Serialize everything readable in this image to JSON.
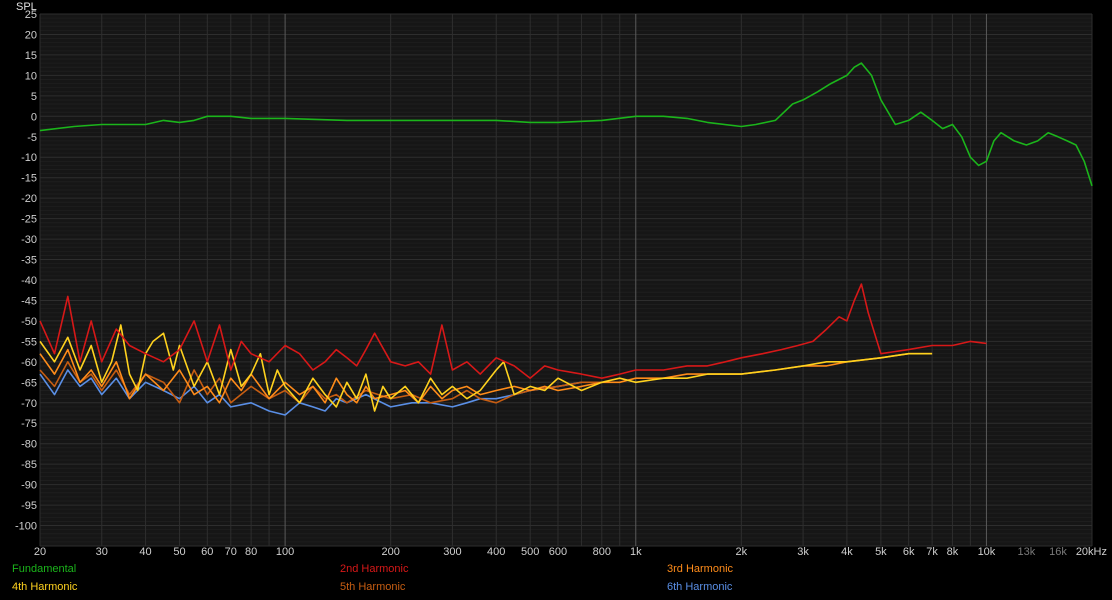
{
  "chart_data": {
    "type": "line",
    "ylabel": "SPL",
    "x_scale": "log",
    "xlim": [
      20,
      20000
    ],
    "ylim": [
      -105,
      25
    ],
    "grid": true,
    "legend_position": "bottom",
    "background": "#000000",
    "y_ticks": [
      "25",
      "20",
      "15",
      "10",
      "5",
      "0",
      "-5",
      "-10",
      "-15",
      "-20",
      "-25",
      "-30",
      "-35",
      "-40",
      "-45",
      "-50",
      "-55",
      "-60",
      "-65",
      "-70",
      "-75",
      "-80",
      "-85",
      "-90",
      "-95",
      "-100"
    ],
    "x_ticks": [
      {
        "value": 20,
        "label": "20"
      },
      {
        "value": 30,
        "label": "30"
      },
      {
        "value": 40,
        "label": "40"
      },
      {
        "value": 50,
        "label": "50"
      },
      {
        "value": 60,
        "label": "60"
      },
      {
        "value": 70,
        "label": "70"
      },
      {
        "value": 80,
        "label": "80"
      },
      {
        "value": 100,
        "label": "100"
      },
      {
        "value": 200,
        "label": "200"
      },
      {
        "value": 300,
        "label": "300"
      },
      {
        "value": 400,
        "label": "400"
      },
      {
        "value": 500,
        "label": "500"
      },
      {
        "value": 600,
        "label": "600"
      },
      {
        "value": 800,
        "label": "800"
      },
      {
        "value": 1000,
        "label": "1k"
      },
      {
        "value": 2000,
        "label": "2k"
      },
      {
        "value": 3000,
        "label": "3k"
      },
      {
        "value": 4000,
        "label": "4k"
      },
      {
        "value": 5000,
        "label": "5k"
      },
      {
        "value": 6000,
        "label": "6k"
      },
      {
        "value": 7000,
        "label": "7k"
      },
      {
        "value": 8000,
        "label": "8k"
      },
      {
        "value": 10000,
        "label": "10k"
      },
      {
        "value": 13000,
        "label": "13k",
        "dim": true
      },
      {
        "value": 16000,
        "label": "16k",
        "dim": true
      },
      {
        "value": 20000,
        "label": "20kHz"
      }
    ],
    "series": [
      {
        "name": "Fundamental",
        "color": "#1bb51b",
        "x": [
          20,
          25,
          30,
          35,
          40,
          45,
          50,
          55,
          60,
          70,
          80,
          100,
          150,
          200,
          300,
          400,
          500,
          600,
          800,
          1000,
          1200,
          1400,
          1600,
          2000,
          2200,
          2500,
          2800,
          3000,
          3300,
          3600,
          4000,
          4200,
          4400,
          4700,
          5000,
          5500,
          6000,
          6500,
          7000,
          7500,
          8000,
          8500,
          9000,
          9500,
          10000,
          10500,
          11000,
          12000,
          13000,
          14000,
          15000,
          16000,
          17000,
          18000,
          19000,
          20000
        ],
        "y": [
          -3.5,
          -2.5,
          -2,
          -2,
          -2,
          -1,
          -1.5,
          -1,
          0,
          0,
          -0.5,
          -0.5,
          -1,
          -1,
          -1,
          -1,
          -1.5,
          -1.5,
          -1,
          0,
          0,
          -0.5,
          -1.5,
          -2.5,
          -2,
          -1,
          3,
          4,
          6,
          8,
          10,
          12,
          13,
          10,
          4,
          -2,
          -1,
          1,
          -1,
          -3,
          -2,
          -5,
          -10,
          -12,
          -11,
          -6,
          -4,
          -6,
          -7,
          -6,
          -4,
          -5,
          -6,
          -7,
          -11,
          -17
        ]
      },
      {
        "name": "2nd Harmonic",
        "color": "#d71818",
        "x": [
          20,
          22,
          24,
          26,
          28,
          30,
          33,
          36,
          40,
          45,
          50,
          55,
          60,
          65,
          70,
          75,
          80,
          90,
          100,
          110,
          120,
          130,
          140,
          150,
          160,
          170,
          180,
          200,
          220,
          240,
          260,
          280,
          300,
          330,
          360,
          400,
          450,
          500,
          550,
          600,
          700,
          800,
          900,
          1000,
          1200,
          1400,
          1600,
          1800,
          2000,
          2300,
          2600,
          2900,
          3200,
          3500,
          3800,
          4000,
          4200,
          4400,
          4600,
          5000,
          6000,
          7000,
          8000,
          9000,
          10000
        ],
        "y": [
          -50,
          -58,
          -44,
          -60,
          -50,
          -60,
          -52,
          -56,
          -58,
          -60,
          -57,
          -50,
          -60,
          -51,
          -62,
          -55,
          -58,
          -60,
          -56,
          -58,
          -62,
          -60,
          -57,
          -59,
          -61,
          -57,
          -53,
          -60,
          -61,
          -60,
          -63,
          -51,
          -62,
          -60,
          -63,
          -59,
          -61,
          -64,
          -61,
          -62,
          -63,
          -64,
          -63,
          -62,
          -62,
          -61,
          -61,
          -60,
          -59,
          -58,
          -57,
          -56,
          -55,
          -52,
          -49,
          -50,
          -45,
          -41,
          -48,
          -58,
          -57,
          -56,
          -56,
          -55,
          -55.5
        ]
      },
      {
        "name": "3rd Harmonic",
        "color": "#ff8c1a",
        "x": [
          20,
          22,
          24,
          26,
          28,
          30,
          33,
          36,
          40,
          45,
          50,
          55,
          60,
          65,
          70,
          75,
          80,
          90,
          100,
          110,
          120,
          130,
          140,
          150,
          160,
          170,
          180,
          200,
          220,
          240,
          260,
          280,
          300,
          330,
          360,
          400,
          450,
          500,
          550,
          600,
          700,
          800,
          900,
          1000,
          1200,
          1400,
          1600,
          2000,
          2500,
          3000,
          3500,
          4000,
          5000,
          6000,
          7000
        ],
        "y": [
          -58,
          -63,
          -57,
          -65,
          -62,
          -66,
          -60,
          -69,
          -63,
          -67,
          -62,
          -68,
          -66,
          -70,
          -64,
          -67,
          -63,
          -69,
          -65,
          -68,
          -66,
          -70,
          -64,
          -68,
          -70,
          -66,
          -69,
          -68,
          -67,
          -70,
          -66,
          -69,
          -67,
          -66,
          -68,
          -67,
          -66,
          -67,
          -66,
          -67,
          -66,
          -65,
          -65,
          -64,
          -64,
          -63,
          -63,
          -63,
          -62,
          -61,
          -61,
          -60,
          -59,
          -58,
          -58
        ]
      },
      {
        "name": "4th Harmonic",
        "color": "#ffd21e",
        "x": [
          20,
          22,
          24,
          26,
          28,
          30,
          32,
          34,
          36,
          38,
          40,
          42,
          45,
          48,
          50,
          55,
          60,
          65,
          70,
          75,
          80,
          85,
          90,
          95,
          100,
          110,
          120,
          130,
          140,
          150,
          160,
          170,
          180,
          190,
          200,
          220,
          240,
          260,
          280,
          300,
          330,
          360,
          400,
          420,
          450,
          500,
          550,
          600,
          700,
          800,
          900,
          1000,
          1200,
          1400,
          1600,
          2000,
          2500,
          3000,
          3500,
          4000,
          5000,
          6000,
          7000
        ],
        "y": [
          -55,
          -60,
          -54,
          -62,
          -56,
          -65,
          -60,
          -51,
          -63,
          -67,
          -58,
          -55,
          -53,
          -62,
          -56,
          -66,
          -60,
          -68,
          -57,
          -66,
          -63,
          -58,
          -68,
          -62,
          -66,
          -70,
          -64,
          -68,
          -71,
          -65,
          -69,
          -63,
          -72,
          -66,
          -69,
          -66,
          -70,
          -64,
          -68,
          -66,
          -69,
          -67,
          -62,
          -60,
          -68,
          -66,
          -67,
          -64,
          -67,
          -65,
          -64,
          -65,
          -64,
          -64,
          -63,
          -63,
          -62,
          -61,
          -60,
          -60,
          -59,
          -58,
          -58
        ]
      },
      {
        "name": "5th Harmonic",
        "color": "#c65d12",
        "x": [
          20,
          22,
          24,
          26,
          28,
          30,
          33,
          36,
          40,
          45,
          50,
          55,
          60,
          65,
          70,
          80,
          90,
          100,
          110,
          120,
          130,
          140,
          150,
          170,
          200,
          230,
          260,
          300,
          330,
          360,
          400,
          450,
          500,
          600,
          700,
          800
        ],
        "y": [
          -62,
          -66,
          -60,
          -65,
          -63,
          -67,
          -62,
          -68,
          -63,
          -65,
          -70,
          -62,
          -68,
          -64,
          -70,
          -66,
          -69,
          -67,
          -70,
          -66,
          -69,
          -68,
          -70,
          -67,
          -69,
          -68,
          -70,
          -69,
          -67,
          -69,
          -70,
          -68,
          -67,
          -66,
          -65,
          -65
        ]
      },
      {
        "name": "6th Harmonic",
        "color": "#5a8fe6",
        "x": [
          20,
          22,
          24,
          26,
          28,
          30,
          33,
          36,
          40,
          45,
          50,
          55,
          60,
          65,
          70,
          80,
          90,
          100,
          110,
          120,
          130,
          140,
          150,
          170,
          200,
          230,
          260,
          300,
          330,
          360,
          400,
          450,
          500,
          600,
          700
        ],
        "y": [
          -63,
          -68,
          -62,
          -66,
          -64,
          -68,
          -64,
          -69,
          -65,
          -67,
          -69,
          -66,
          -70,
          -68,
          -71,
          -70,
          -72,
          -73,
          -70,
          -71,
          -72,
          -69,
          -70,
          -68,
          -71,
          -70,
          -70,
          -71,
          -70,
          -69,
          -69,
          -68,
          -67,
          -66,
          -65
        ]
      }
    ]
  }
}
